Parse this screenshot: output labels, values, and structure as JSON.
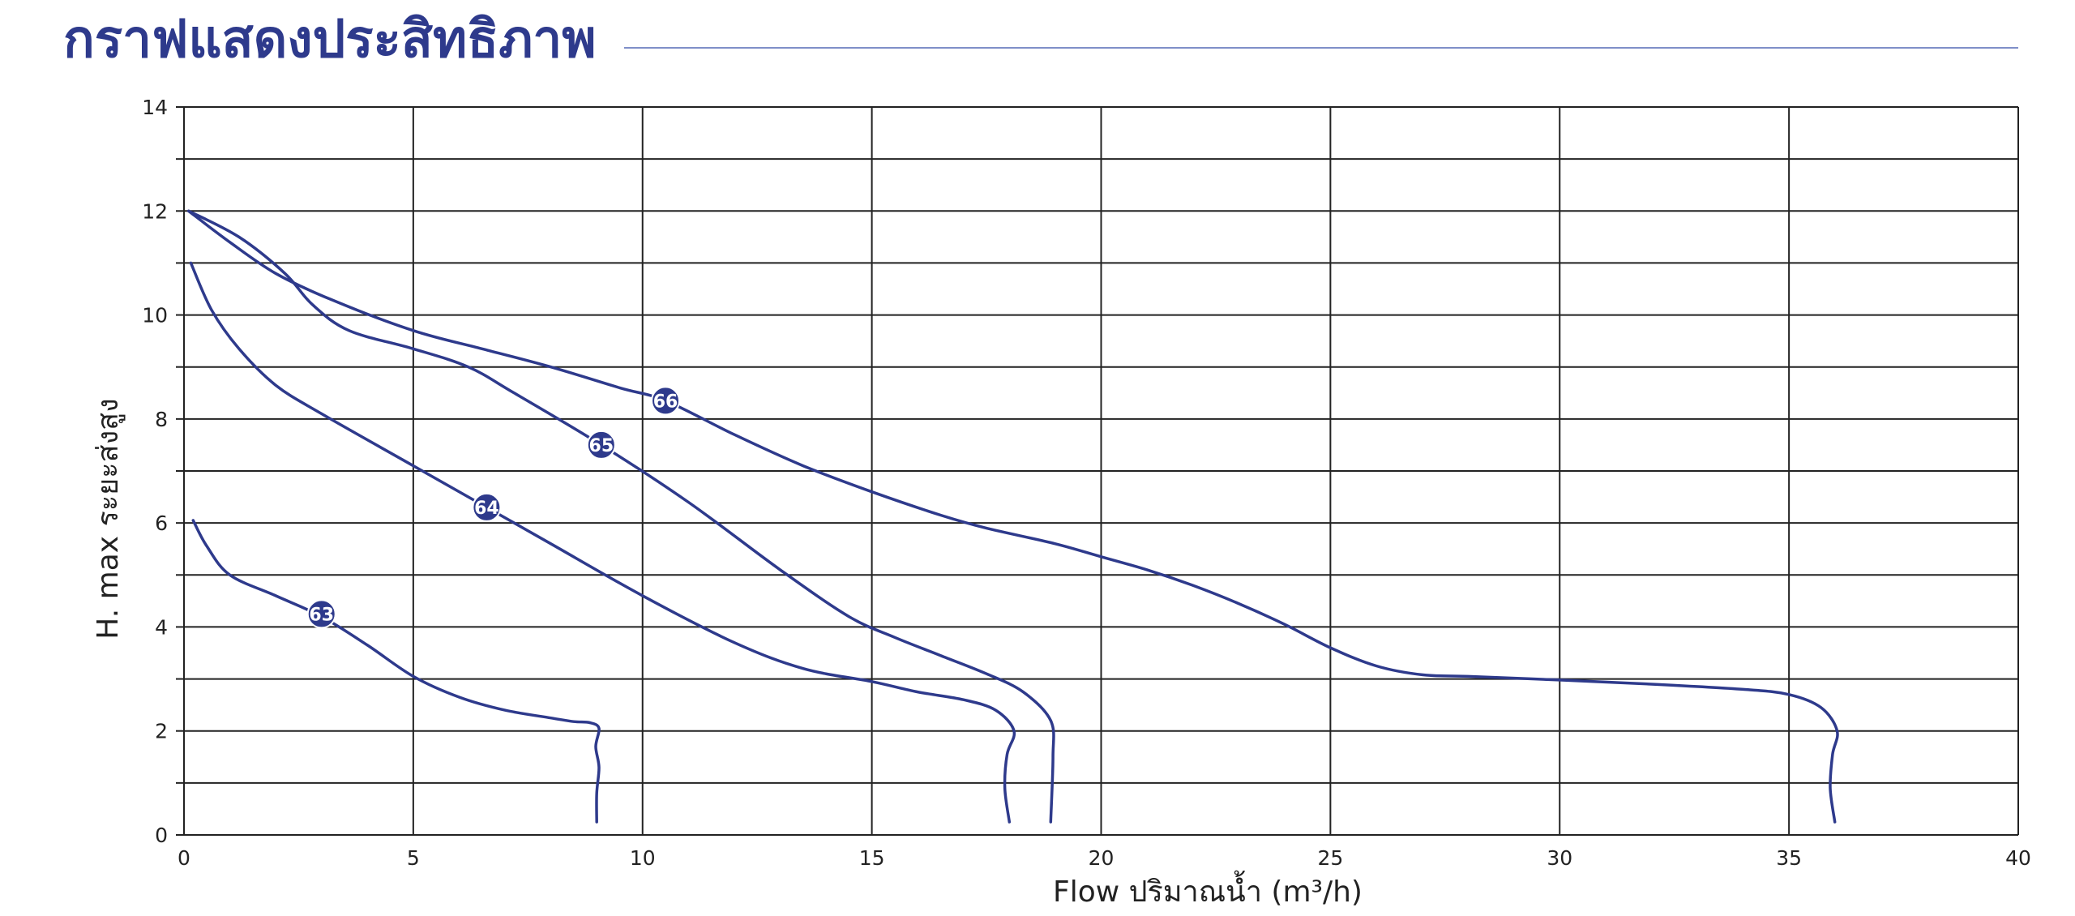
{
  "page": {
    "title": "กราฟแสดงประสิทธิภาพ"
  },
  "colors": {
    "title": "#2e3a8c",
    "title_rule": "#7f8fc8",
    "curve": "#2e3a8c",
    "grid": "#222222"
  },
  "chart_data": {
    "type": "line",
    "title": "กราฟแสดงประสิทธิภาพ",
    "xlabel": "Flow ปริมาณน้ำ (m³/h)",
    "ylabel": "H. max ระยะส่งสูง",
    "xlim": [
      0,
      40
    ],
    "ylim": [
      0,
      14
    ],
    "x_ticks": [
      0,
      5,
      10,
      15,
      20,
      25,
      30,
      35,
      40
    ],
    "y_ticks": [
      0,
      2,
      4,
      6,
      8,
      10,
      12,
      14
    ],
    "grid": true,
    "legend": "curve labels inline",
    "series": [
      {
        "name": "63",
        "label_at": [
          3.0,
          4.25
        ],
        "points": [
          [
            0.2,
            6.05
          ],
          [
            0.5,
            5.55
          ],
          [
            1.0,
            5.0
          ],
          [
            2.0,
            4.6
          ],
          [
            3.0,
            4.2
          ],
          [
            4.0,
            3.65
          ],
          [
            5.0,
            3.05
          ],
          [
            6.0,
            2.65
          ],
          [
            7.0,
            2.4
          ],
          [
            8.0,
            2.25
          ],
          [
            8.5,
            2.18
          ],
          [
            8.85,
            2.16
          ],
          [
            9.05,
            2.05
          ],
          [
            8.98,
            1.7
          ],
          [
            9.05,
            1.3
          ],
          [
            9.0,
            0.8
          ],
          [
            9.0,
            0.25
          ]
        ]
      },
      {
        "name": "64",
        "label_at": [
          6.6,
          6.3
        ],
        "points": [
          [
            0.15,
            11.0
          ],
          [
            0.6,
            10.1
          ],
          [
            1.2,
            9.35
          ],
          [
            2.0,
            8.65
          ],
          [
            3.0,
            8.1
          ],
          [
            5.0,
            7.1
          ],
          [
            6.6,
            6.3
          ],
          [
            8.0,
            5.6
          ],
          [
            10.0,
            4.6
          ],
          [
            12.0,
            3.7
          ],
          [
            13.5,
            3.2
          ],
          [
            15.0,
            2.95
          ],
          [
            16.0,
            2.75
          ],
          [
            17.0,
            2.6
          ],
          [
            17.7,
            2.4
          ],
          [
            18.1,
            2.0
          ],
          [
            17.95,
            1.55
          ],
          [
            17.9,
            0.9
          ],
          [
            18.0,
            0.25
          ]
        ]
      },
      {
        "name": "65",
        "label_at": [
          9.1,
          7.5
        ],
        "points": [
          [
            0.1,
            12.0
          ],
          [
            1.2,
            11.5
          ],
          [
            2.2,
            10.8
          ],
          [
            2.8,
            10.2
          ],
          [
            3.6,
            9.7
          ],
          [
            5.0,
            9.35
          ],
          [
            6.2,
            9.0
          ],
          [
            7.2,
            8.5
          ],
          [
            9.1,
            7.5
          ],
          [
            11.0,
            6.4
          ],
          [
            13.0,
            5.1
          ],
          [
            14.5,
            4.2
          ],
          [
            15.5,
            3.8
          ],
          [
            16.5,
            3.45
          ],
          [
            17.5,
            3.1
          ],
          [
            18.3,
            2.75
          ],
          [
            18.9,
            2.2
          ],
          [
            18.95,
            1.5
          ],
          [
            18.9,
            0.25
          ]
        ]
      },
      {
        "name": "66",
        "label_at": [
          10.5,
          8.35
        ],
        "points": [
          [
            0.1,
            12.0
          ],
          [
            1.0,
            11.4
          ],
          [
            2.0,
            10.8
          ],
          [
            3.2,
            10.3
          ],
          [
            5.0,
            9.7
          ],
          [
            6.5,
            9.35
          ],
          [
            8.0,
            9.0
          ],
          [
            9.5,
            8.6
          ],
          [
            10.5,
            8.35
          ],
          [
            12.0,
            7.7
          ],
          [
            13.5,
            7.1
          ],
          [
            15.0,
            6.6
          ],
          [
            16.5,
            6.15
          ],
          [
            17.5,
            5.9
          ],
          [
            19.0,
            5.6
          ],
          [
            20.0,
            5.35
          ],
          [
            21.0,
            5.1
          ],
          [
            22.0,
            4.8
          ],
          [
            23.0,
            4.45
          ],
          [
            24.0,
            4.05
          ],
          [
            25.0,
            3.6
          ],
          [
            26.0,
            3.25
          ],
          [
            27.0,
            3.08
          ],
          [
            28.0,
            3.05
          ],
          [
            30.0,
            2.98
          ],
          [
            32.0,
            2.9
          ],
          [
            34.0,
            2.8
          ],
          [
            35.0,
            2.7
          ],
          [
            35.7,
            2.45
          ],
          [
            36.05,
            2.0
          ],
          [
            35.95,
            1.55
          ],
          [
            35.9,
            0.9
          ],
          [
            36.0,
            0.25
          ]
        ]
      }
    ]
  }
}
